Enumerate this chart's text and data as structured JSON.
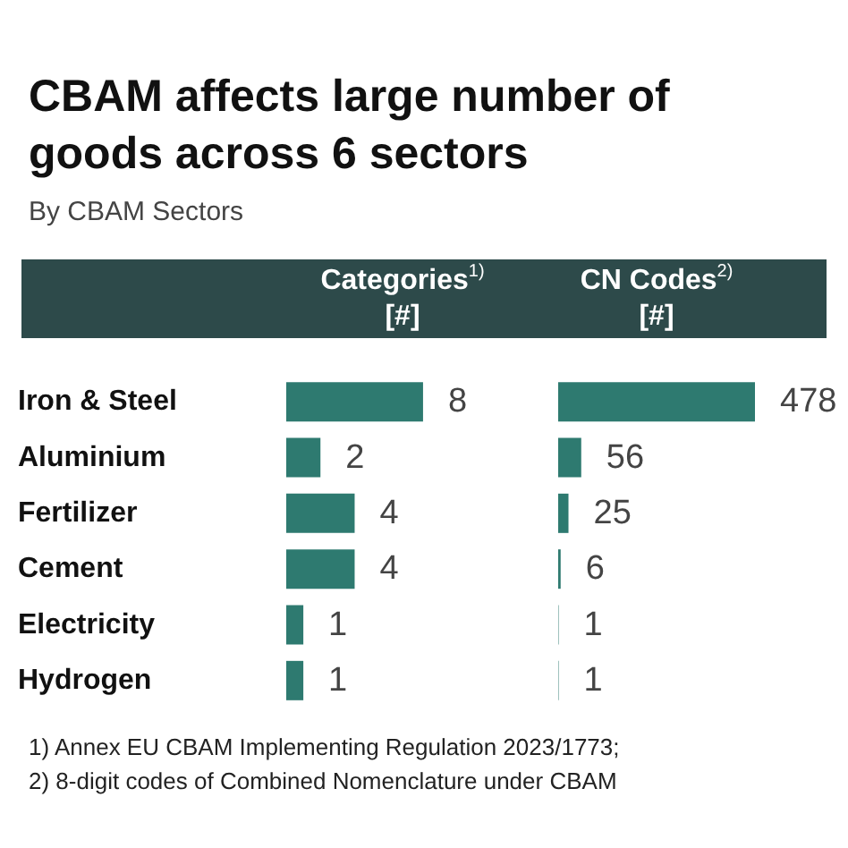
{
  "chart_data": [
    {
      "type": "bar",
      "title": "CBAM affects large number of goods across 6 sectors",
      "subtitle": "By CBAM Sectors",
      "xlabel": "Categories$^{1)}$\n[#]",
      "orientation": "horizontal",
      "categories": [
        "Iron & Steel",
        "Aluminium",
        "Fertilizer",
        "Cement",
        "Electricity",
        "Hydrogen"
      ],
      "values": [
        8,
        2,
        4,
        4,
        1,
        1
      ],
      "color": "#2e7a70",
      "data_labels": true,
      "tick_labels": "y",
      "annotations": [
        "1) Annex EU CBAM Implementing Regulation 2023/1773;",
        "2) 8-digit codes of Combined Nomenclature under CBAM"
      ]
    },
    {
      "type": "bar",
      "xlabel": "CN Codes$^{2)}$\n[#]",
      "orientation": "horizontal",
      "categories": [
        null,
        null,
        null,
        null,
        null,
        null
      ],
      "values": [
        478,
        56,
        25,
        6,
        1,
        1
      ],
      "color": "#2e7a70",
      "data_labels": true,
      "tick_labels": false
    }
  ]
}
